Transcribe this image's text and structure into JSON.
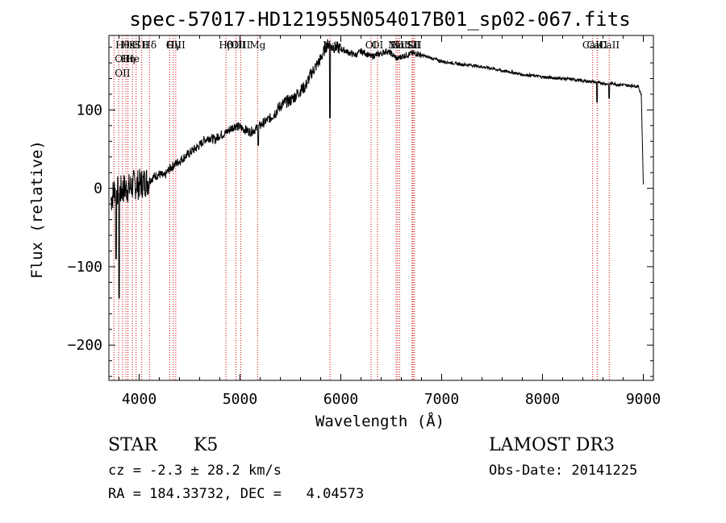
{
  "chart_data": {
    "type": "line",
    "title": "spec-57017-HD121955N054017B01_sp02-067.fits",
    "xlabel": "Wavelength (Å)",
    "ylabel": "Flux (relative)",
    "xlim": [
      3700,
      9100
    ],
    "ylim": [
      -245,
      195
    ],
    "xticks": [
      4000,
      5000,
      6000,
      7000,
      8000,
      9000
    ],
    "yticks": [
      -200,
      -100,
      0,
      100
    ],
    "spectrum_anchors": {
      "x": [
        3720,
        3760,
        3800,
        3850,
        3900,
        3950,
        4000,
        4050,
        4100,
        4150,
        4200,
        4250,
        4300,
        4350,
        4400,
        4450,
        4500,
        4550,
        4600,
        4650,
        4700,
        4750,
        4800,
        4850,
        4900,
        4950,
        5000,
        5050,
        5100,
        5150,
        5200,
        5250,
        5300,
        5350,
        5400,
        5450,
        5500,
        5550,
        5600,
        5650,
        5700,
        5750,
        5800,
        5850,
        5880,
        5900,
        5950,
        6000,
        6050,
        6100,
        6150,
        6200,
        6250,
        6300,
        6350,
        6400,
        6450,
        6500,
        6560,
        6600,
        6650,
        6700,
        6750,
        6800,
        6900,
        7000,
        7100,
        7200,
        7300,
        7400,
        7500,
        7600,
        7700,
        7800,
        7900,
        8000,
        8100,
        8200,
        8300,
        8400,
        8500,
        8540,
        8600,
        8650,
        8700,
        8750,
        8800,
        8850,
        8900,
        8950,
        8980,
        9000
      ],
      "y": [
        -15,
        0,
        -5,
        0,
        0,
        5,
        5,
        8,
        10,
        15,
        18,
        15,
        25,
        30,
        35,
        40,
        45,
        50,
        55,
        62,
        65,
        62,
        68,
        70,
        75,
        80,
        78,
        75,
        72,
        75,
        80,
        85,
        90,
        97,
        105,
        110,
        112,
        118,
        125,
        130,
        145,
        155,
        165,
        180,
        185,
        180,
        180,
        178,
        175,
        172,
        170,
        175,
        172,
        168,
        170,
        172,
        175,
        172,
        165,
        168,
        170,
        172,
        172,
        170,
        166,
        162,
        160,
        158,
        157,
        155,
        153,
        150,
        148,
        145,
        144,
        142,
        141,
        140,
        139,
        137,
        136,
        135,
        134,
        133,
        134,
        132,
        132,
        131,
        131,
        130,
        120,
        5
      ]
    },
    "absorption_dips": [
      {
        "x": 3800,
        "depth": -140
      },
      {
        "x": 3770,
        "depth": -90
      },
      {
        "x": 5180,
        "depth": 55
      },
      {
        "x": 5893,
        "depth": 90
      },
      {
        "x": 8542,
        "depth": 110
      },
      {
        "x": 8662,
        "depth": 115
      }
    ],
    "line_markers": [
      {
        "x": 3750,
        "labels": []
      },
      {
        "x": 3797,
        "labels": []
      },
      {
        "x": 3835,
        "labels": [
          "Hθ",
          "OII",
          "OII"
        ]
      },
      {
        "x": 3869,
        "labels": []
      },
      {
        "x": 3889,
        "labels": [
          "Hε",
          "Hη"
        ]
      },
      {
        "x": 3934,
        "labels": [
          "K",
          "He"
        ]
      },
      {
        "x": 3970,
        "labels": [
          "H"
        ]
      },
      {
        "x": 4026,
        "labels": [
          "SII"
        ]
      },
      {
        "x": 4102,
        "labels": [
          "Hδ"
        ]
      },
      {
        "x": 4304,
        "labels": [
          "G"
        ]
      },
      {
        "x": 4340,
        "labels": [
          "Hγ"
        ]
      },
      {
        "x": 4363,
        "labels": [
          "OIII"
        ]
      },
      {
        "x": 4861,
        "labels": [
          "Hβ"
        ]
      },
      {
        "x": 4959,
        "labels": [
          "OIII"
        ]
      },
      {
        "x": 5007,
        "labels": [
          "OIII"
        ]
      },
      {
        "x": 5175,
        "labels": [
          "Mg"
        ]
      },
      {
        "x": 5893,
        "labels": [
          "Na"
        ]
      },
      {
        "x": 6300,
        "labels": [
          "OI"
        ]
      },
      {
        "x": 6364,
        "labels": [
          "OI"
        ]
      },
      {
        "x": 6548,
        "labels": [
          "NII"
        ]
      },
      {
        "x": 6563,
        "labels": [
          "Hα"
        ]
      },
      {
        "x": 6583,
        "labels": [
          "NII"
        ]
      },
      {
        "x": 6707,
        "labels": [
          "Li"
        ]
      },
      {
        "x": 6716,
        "labels": [
          "SII"
        ]
      },
      {
        "x": 6731,
        "labels": [
          "SII"
        ]
      },
      {
        "x": 8498,
        "labels": [
          "CaII"
        ]
      },
      {
        "x": 8542,
        "labels": [
          "CaII"
        ]
      },
      {
        "x": 8662,
        "labels": [
          "CaII"
        ]
      }
    ],
    "colors": {
      "spectrum": "#000000",
      "marker": "#cc0000",
      "axes": "#000000"
    }
  },
  "info": {
    "object_class": "STAR",
    "subclass": "K5",
    "survey": "LAMOST DR3",
    "cz": "cz = -2.3 ± 28.2 km/s",
    "obs_date": "Obs-Date: 20141225",
    "coords": "RA = 184.33732, DEC =   4.04573"
  }
}
